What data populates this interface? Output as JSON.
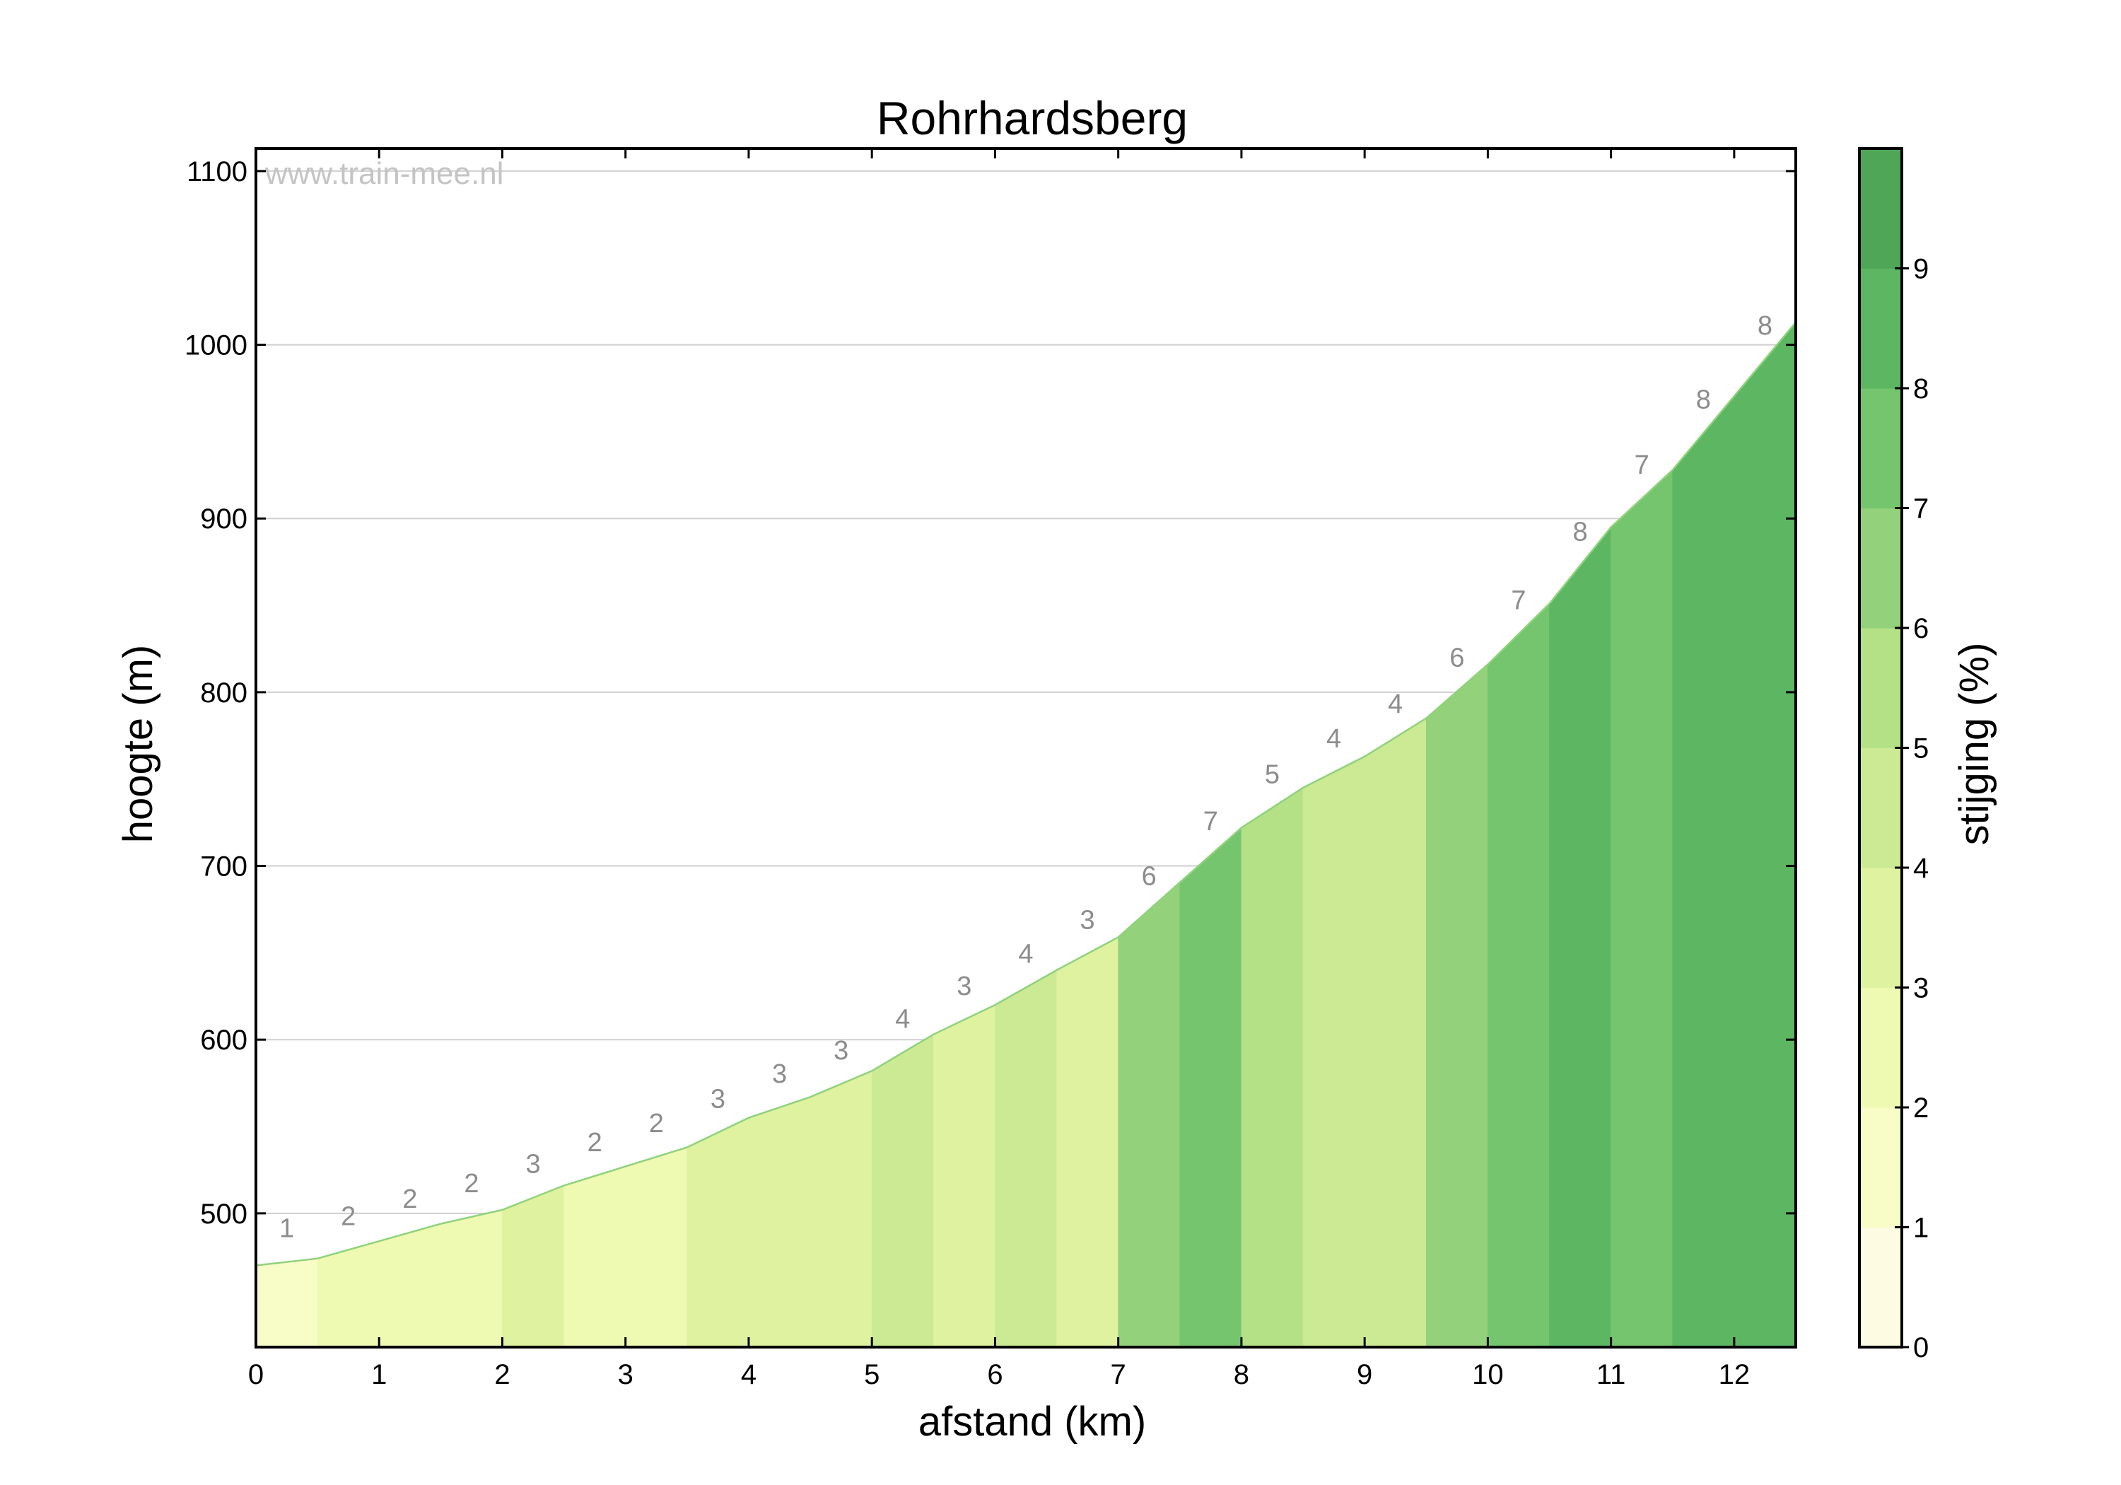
{
  "chart_data": {
    "type": "area",
    "title": "Rohrhardsberg",
    "xlabel": "afstand (km)",
    "ylabel": "hoogte (m)",
    "xlim": [
      0,
      12.5
    ],
    "ylim": [
      423,
      1113
    ],
    "xticks": [
      "0",
      "1",
      "2",
      "3",
      "4",
      "5",
      "6",
      "7",
      "8",
      "9",
      "10",
      "11",
      "12"
    ],
    "yticks": [
      "500",
      "600",
      "700",
      "800",
      "900",
      "1000",
      "1100"
    ],
    "grid": "horizontal",
    "watermark": "www.train-mee.nl",
    "profile": {
      "x": [
        0,
        0.5,
        1,
        1.5,
        2,
        2.5,
        3,
        3.5,
        4,
        4.5,
        5,
        5.5,
        6,
        6.5,
        7,
        8,
        8.5,
        9,
        9.5,
        10,
        10.5,
        11,
        11.5,
        12.5
      ],
      "y": [
        470,
        474,
        484,
        494,
        502,
        516,
        527,
        538,
        555,
        567,
        582,
        603,
        620,
        640,
        659,
        722,
        745,
        763,
        785,
        816,
        851,
        895,
        928,
        1013
      ]
    },
    "segments": [
      {
        "x0": 0,
        "x1": 0.5,
        "grade": 1
      },
      {
        "x0": 0.5,
        "x1": 1,
        "grade": 2
      },
      {
        "x0": 1,
        "x1": 1.5,
        "grade": 2
      },
      {
        "x0": 1.5,
        "x1": 2,
        "grade": 2
      },
      {
        "x0": 2,
        "x1": 2.5,
        "grade": 3
      },
      {
        "x0": 2.5,
        "x1": 3,
        "grade": 2
      },
      {
        "x0": 3,
        "x1": 3.5,
        "grade": 2
      },
      {
        "x0": 3.5,
        "x1": 4,
        "grade": 3
      },
      {
        "x0": 4,
        "x1": 4.5,
        "grade": 3
      },
      {
        "x0": 4.5,
        "x1": 5,
        "grade": 3
      },
      {
        "x0": 5,
        "x1": 5.5,
        "grade": 4
      },
      {
        "x0": 5.5,
        "x1": 6,
        "grade": 3
      },
      {
        "x0": 6,
        "x1": 6.5,
        "grade": 4
      },
      {
        "x0": 6.5,
        "x1": 7,
        "grade": 3
      },
      {
        "x0": 7,
        "x1": 7.5,
        "grade": 6
      },
      {
        "x0": 7.5,
        "x1": 8,
        "grade": 7
      },
      {
        "x0": 8,
        "x1": 8.5,
        "grade": 5
      },
      {
        "x0": 8.5,
        "x1": 9,
        "grade": 4
      },
      {
        "x0": 9,
        "x1": 9.5,
        "grade": 4
      },
      {
        "x0": 9.5,
        "x1": 10,
        "grade": 6
      },
      {
        "x0": 10,
        "x1": 10.5,
        "grade": 7
      },
      {
        "x0": 10.5,
        "x1": 11,
        "grade": 8
      },
      {
        "x0": 11,
        "x1": 11.5,
        "grade": 7
      },
      {
        "x0": 11.5,
        "x1": 12,
        "grade": 8
      },
      {
        "x0": 12,
        "x1": 12.5,
        "grade": 8
      }
    ],
    "colorbar": {
      "label": "stijging (%)",
      "ticks": [
        "0",
        "1",
        "2",
        "3",
        "4",
        "5",
        "6",
        "7",
        "8",
        "9"
      ],
      "colors": [
        "#fdfbe1",
        "#f8fcc7",
        "#eef9b1",
        "#def2a0",
        "#cbea93",
        "#b4e186",
        "#93d17b",
        "#74c56e",
        "#5cb662",
        "#4fa657"
      ]
    },
    "line_color": "#8fd27c"
  }
}
